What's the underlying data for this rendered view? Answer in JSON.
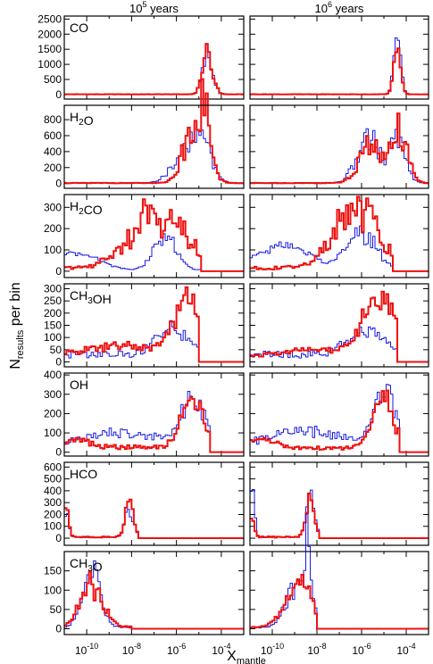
{
  "chart_data": {
    "type": "histogram-grid",
    "ylabel": "N",
    "ylabel_sub": "results",
    "ylabel_rest": " per bin",
    "xlabel": "X",
    "xlabel_sub": "mantle",
    "x_scale": "log",
    "x_range": [
      1e-11,
      0.001
    ],
    "x_ticks": [
      {
        "value": 1e-10,
        "base": "10",
        "exp": "-10"
      },
      {
        "value": 1e-08,
        "base": "10",
        "exp": "-8"
      },
      {
        "value": 1e-06,
        "base": "10",
        "exp": "-6"
      },
      {
        "value": 0.0001,
        "base": "10",
        "exp": "-4"
      }
    ],
    "columns": [
      {
        "base": "10",
        "exp": "5",
        "unit": " years"
      },
      {
        "base": "10",
        "exp": "6",
        "unit": " years"
      }
    ],
    "series_colors": {
      "red": "#ee1111",
      "blue": "#1a1ae6"
    },
    "rows": [
      {
        "species": "CO",
        "parts": [
          {
            "t": "CO"
          }
        ],
        "ylim": [
          -150,
          2600
        ],
        "yticks": [
          0,
          500,
          1000,
          1500,
          2000,
          2500
        ],
        "peaks": [
          {
            "red": [
              [
                -5.6,
                0.55,
                0.3,
                0.3,
                0
              ],
              [
                -4.6,
                0.22,
                1300,
                0.65,
                0
              ]
            ],
            "blue": [
              [
                -5.6,
                0.55,
                0.3,
                0.3,
                0
              ],
              [
                -4.6,
                0.22,
                1400,
                0.65,
                0
              ]
            ],
            "bred": 8,
            "bblue": 8
          },
          {
            "red": [
              [
                -5.0,
                0.5,
                0.3,
                0.3,
                0
              ],
              [
                -4.4,
                0.15,
                1600,
                0.35,
                0
              ]
            ],
            "blue": [
              [
                -5.0,
                0.5,
                0.3,
                0.3,
                0
              ],
              [
                -4.4,
                0.15,
                2150,
                0.3,
                0
              ]
            ],
            "bred": 8,
            "bblue": 8
          }
        ]
      },
      {
        "species": "H2O",
        "parts": [
          {
            "t": "H"
          },
          {
            "t": "2",
            "sub": true
          },
          {
            "t": "O"
          }
        ],
        "ylim": [
          -60,
          980
        ],
        "yticks": [
          0,
          200,
          400,
          600,
          800
        ],
        "peaks": [
          {
            "red": [
              [
                -5.2,
                0.45,
                750,
                0.9,
                0.1
              ],
              [
                -4.7,
                0.3,
                500,
                0.8,
                0.2
              ]
            ],
            "blue": [
              [
                -5.5,
                0.6,
                400,
                0.6,
                0.1
              ],
              [
                -4.8,
                0.4,
                350,
                0.7,
                0.2
              ]
            ],
            "bred": 6,
            "bblue": 8
          },
          {
            "red": [
              [
                -5.6,
                0.5,
                450,
                0.8,
                0.2
              ],
              [
                -4.3,
                0.35,
                700,
                0.9,
                0.1
              ]
            ],
            "blue": [
              [
                -5.7,
                0.5,
                550,
                0.7,
                0.2
              ],
              [
                -4.4,
                0.35,
                520,
                0.6,
                0.2
              ]
            ],
            "bred": 6,
            "bblue": 8
          }
        ]
      },
      {
        "species": "H2CO",
        "parts": [
          {
            "t": "H"
          },
          {
            "t": "2",
            "sub": true
          },
          {
            "t": "CO"
          }
        ],
        "ylim": [
          -30,
          360
        ],
        "yticks": [
          0,
          100,
          200,
          300
        ],
        "peaks": [
          {
            "red": [
              [
                -6.8,
                1.2,
                260,
                0.8,
                0.2
              ]
            ],
            "blue": [
              [
                -10.5,
                1.0,
                80,
                0.3,
                0.15
              ],
              [
                -6.5,
                0.5,
                150,
                0.5,
                0.2
              ]
            ],
            "bred": 15,
            "bblue": 5,
            "cut": -4.9
          },
          {
            "red": [
              [
                -6.2,
                1.0,
                270,
                0.8,
                0.2
              ]
            ],
            "blue": [
              [
                -9.5,
                1.2,
                110,
                0.3,
                0.15
              ],
              [
                -6.0,
                0.6,
                180,
                0.6,
                0.2
              ]
            ],
            "bred": 15,
            "bblue": 8,
            "cut": -4.6
          }
        ]
      },
      {
        "species": "CH3OH",
        "parts": [
          {
            "t": "CH"
          },
          {
            "t": "3",
            "sub": true
          },
          {
            "t": "OH"
          }
        ],
        "ylim": [
          -20,
          320
        ],
        "yticks": [
          0,
          50,
          100,
          150,
          200,
          250,
          300
        ],
        "peaks": [
          {
            "red": [
              [
                -5.5,
                0.6,
                230,
                0.5,
                0.2
              ],
              [
                -8.5,
                1.5,
                40,
                0.3,
                0.2
              ]
            ],
            "blue": [
              [
                -6.2,
                0.7,
                100,
                0.5,
                0.2
              ]
            ],
            "bred": 25,
            "bblue": 30,
            "cut": -5.0
          },
          {
            "red": [
              [
                -5.2,
                0.7,
                240,
                0.5,
                0.2
              ],
              [
                -8.0,
                1.5,
                30,
                0.3,
                0.2
              ]
            ],
            "blue": [
              [
                -5.8,
                0.8,
                95,
                0.5,
                0.2
              ]
            ],
            "bred": 20,
            "bblue": 30,
            "cut": -4.4
          }
        ]
      },
      {
        "species": "OH",
        "parts": [
          {
            "t": "OH"
          }
        ],
        "ylim": [
          -20,
          410
        ],
        "yticks": [
          0,
          100,
          200,
          300,
          400
        ],
        "peaks": [
          {
            "red": [
              [
                -5.3,
                0.5,
                230,
                0.6,
                0.3
              ],
              [
                -10.5,
                0.6,
                40,
                0.3,
                0.2
              ]
            ],
            "blue": [
              [
                -5.3,
                0.5,
                260,
                0.6,
                0.3
              ],
              [
                -8.5,
                1.5,
                60,
                0.4,
                0.2
              ]
            ],
            "bred": 25,
            "bblue": 40,
            "cut": -4.5
          },
          {
            "red": [
              [
                -5.0,
                0.5,
                240,
                0.6,
                0.3
              ],
              [
                -10.5,
                0.6,
                50,
                0.3,
                0.2
              ]
            ],
            "blue": [
              [
                -5.0,
                0.5,
                260,
                0.6,
                0.3
              ],
              [
                -8.5,
                1.5,
                70,
                0.4,
                0.2
              ]
            ],
            "bred": 20,
            "bblue": 40,
            "cut": -4.3
          }
        ]
      },
      {
        "species": "HCO",
        "parts": [
          {
            "t": "HCO"
          }
        ],
        "ylim": [
          -60,
          640
        ],
        "yticks": [
          0,
          100,
          200,
          300,
          400,
          500,
          600
        ],
        "peaks": [
          {
            "red": [
              [
                -10.9,
                0.1,
                280,
                0.5,
                0
              ],
              [
                -8.1,
                0.18,
                280,
                0.5,
                0
              ]
            ],
            "blue": [
              [
                -10.9,
                0.1,
                200,
                0.5,
                0
              ],
              [
                -8.1,
                0.18,
                240,
                0.5,
                0
              ]
            ],
            "bred": 10,
            "bblue": 8,
            "cut": -7.7
          },
          {
            "red": [
              [
                -10.9,
                0.1,
                160,
                0.5,
                0
              ],
              [
                -8.3,
                0.18,
                320,
                0.5,
                0
              ]
            ],
            "blue": [
              [
                -10.9,
                0.1,
                480,
                0.5,
                0
              ],
              [
                -8.3,
                0.18,
                380,
                0.5,
                0
              ]
            ],
            "bred": 10,
            "bblue": 8,
            "cut": -7.9
          }
        ]
      },
      {
        "species": "CH3O",
        "parts": [
          {
            "t": "CH"
          },
          {
            "t": "3",
            "sub": true
          },
          {
            "t": "O"
          }
        ],
        "ylim": [
          -15,
          200
        ],
        "yticks": [
          0,
          50,
          100,
          150
        ],
        "peaks": [
          {
            "red": [
              [
                -9.8,
                0.5,
                110,
                0.5,
                0.3
              ]
            ],
            "blue": [
              [
                -9.8,
                0.4,
                140,
                0.5,
                0.3
              ]
            ],
            "bred": 4,
            "bblue": 3,
            "cut": -8.0
          },
          {
            "red": [
              [
                -8.8,
                0.6,
                110,
                0.5,
                0.3
              ]
            ],
            "blue": [
              [
                -8.8,
                0.5,
                120,
                0.5,
                0.3
              ],
              [
                -8.4,
                0.1,
                180,
                0.5,
                0
              ]
            ],
            "bred": 4,
            "bblue": 3,
            "cut": -8.0
          }
        ]
      }
    ]
  }
}
